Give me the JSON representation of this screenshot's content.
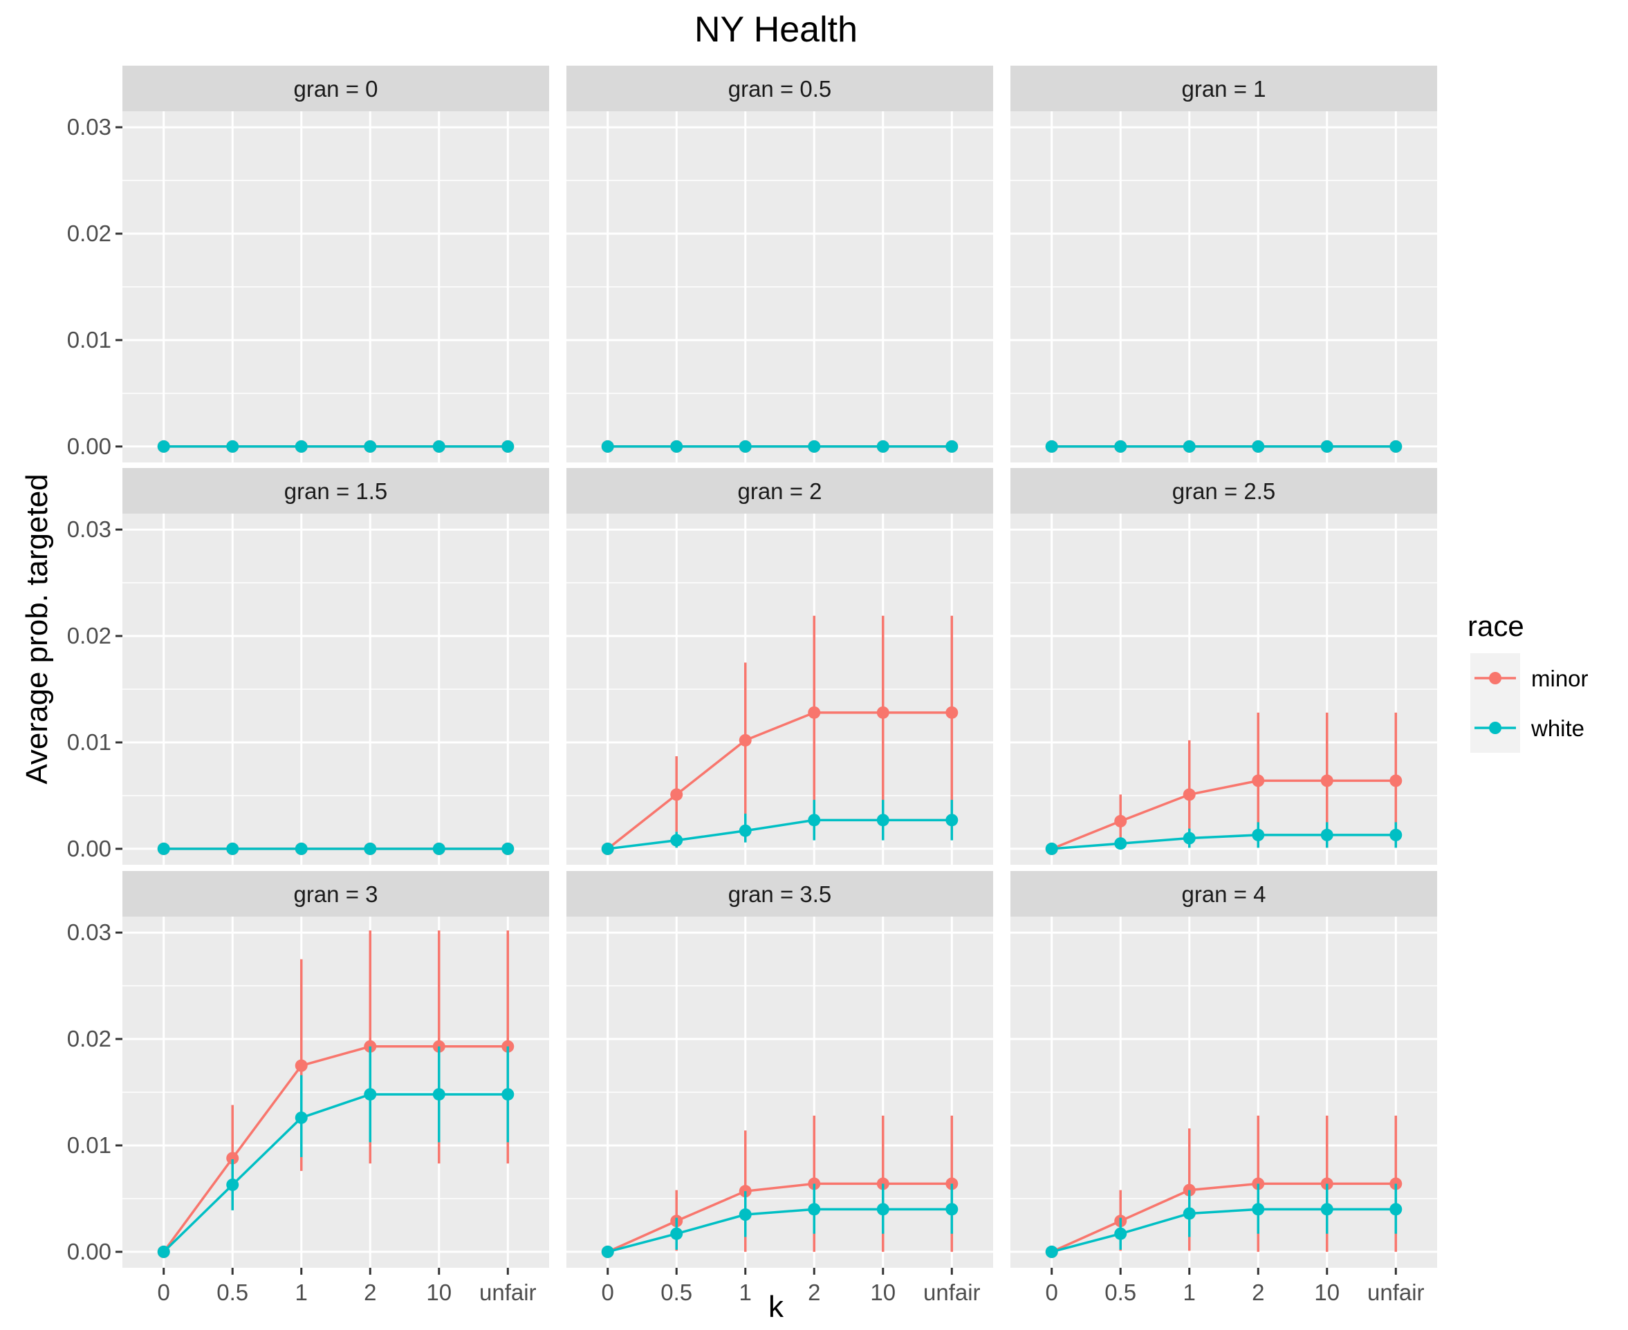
{
  "chart_data": {
    "type": "line",
    "title": "NY Health",
    "xlabel": "k",
    "ylabel": "Average prob. targeted",
    "x_categories": [
      "0",
      "0.5",
      "1",
      "2",
      "10",
      "unfair"
    ],
    "y_ticks": [
      0,
      0.01,
      0.02,
      0.03
    ],
    "y_tick_labels": [
      "0.00",
      "0.01",
      "0.02",
      "0.03"
    ],
    "ylim": [
      -0.0015,
      0.0315
    ],
    "grid": true,
    "facet_variable": "gran",
    "legend": {
      "title": "race",
      "placement": "right",
      "entries": [
        {
          "name": "minor",
          "color": "#F8766D"
        },
        {
          "name": "white",
          "color": "#00BFC4"
        }
      ]
    },
    "colors": {
      "minor": "#F8766D",
      "white": "#00BFC4",
      "panel": "#EBEBEB",
      "strip": "#D9D9D9",
      "grid": "#FFFFFF"
    },
    "panels": [
      {
        "label": "gran =  0",
        "series": [
          {
            "name": "minor",
            "values": [
              0,
              0,
              0,
              0,
              0,
              0
            ],
            "lower": [
              0,
              0,
              0,
              0,
              0,
              0
            ],
            "upper": [
              0,
              0,
              0,
              0,
              0,
              0
            ]
          },
          {
            "name": "white",
            "values": [
              0,
              0,
              0,
              0,
              0,
              0
            ],
            "lower": [
              0,
              0,
              0,
              0,
              0,
              0
            ],
            "upper": [
              0,
              0,
              0,
              0,
              0,
              0
            ]
          }
        ]
      },
      {
        "label": "gran =  0.5",
        "series": [
          {
            "name": "minor",
            "values": [
              0,
              0,
              0,
              0,
              0,
              0
            ],
            "lower": [
              0,
              0,
              0,
              0,
              0,
              0
            ],
            "upper": [
              0,
              0,
              0,
              0,
              0,
              0
            ]
          },
          {
            "name": "white",
            "values": [
              0,
              0,
              0,
              0,
              0,
              0
            ],
            "lower": [
              0,
              0,
              0,
              0,
              0,
              0
            ],
            "upper": [
              0,
              0,
              0,
              0,
              0,
              0
            ]
          }
        ]
      },
      {
        "label": "gran =  1",
        "series": [
          {
            "name": "minor",
            "values": [
              0,
              0,
              0,
              0,
              0,
              0
            ],
            "lower": [
              0,
              0,
              0,
              0,
              0,
              0
            ],
            "upper": [
              0,
              0,
              0,
              0,
              0,
              0
            ]
          },
          {
            "name": "white",
            "values": [
              0,
              0,
              0,
              0,
              0,
              0
            ],
            "lower": [
              0,
              0,
              0,
              0,
              0,
              0
            ],
            "upper": [
              0,
              0,
              0,
              0,
              0,
              0
            ]
          }
        ]
      },
      {
        "label": "gran =  1.5",
        "series": [
          {
            "name": "minor",
            "values": [
              0,
              0,
              0,
              0,
              0,
              0
            ],
            "lower": [
              0,
              0,
              0,
              0,
              0,
              0
            ],
            "upper": [
              0,
              0,
              0,
              0,
              0,
              0
            ]
          },
          {
            "name": "white",
            "values": [
              0,
              0,
              0,
              0,
              0,
              0
            ],
            "lower": [
              0,
              0,
              0,
              0,
              0,
              0
            ],
            "upper": [
              0,
              0,
              0,
              0,
              0,
              0
            ]
          }
        ]
      },
      {
        "label": "gran =  2",
        "series": [
          {
            "name": "minor",
            "values": [
              0,
              0.0051,
              0.0102,
              0.0128,
              0.0128,
              0.0128
            ],
            "lower": [
              0,
              0.0016,
              0.0028,
              0.0036,
              0.0036,
              0.0036
            ],
            "upper": [
              0,
              0.0087,
              0.0175,
              0.0219,
              0.0219,
              0.0219
            ]
          },
          {
            "name": "white",
            "values": [
              0,
              0.0008,
              0.0017,
              0.0027,
              0.0027,
              0.0027
            ],
            "lower": [
              0,
              0.0001,
              0.0006,
              0.0008,
              0.0008,
              0.0008
            ],
            "upper": [
              0,
              0.0016,
              0.0033,
              0.0046,
              0.0046,
              0.0046
            ]
          }
        ]
      },
      {
        "label": "gran =  2.5",
        "series": [
          {
            "name": "minor",
            "values": [
              0,
              0.0026,
              0.0051,
              0.0064,
              0.0064,
              0.0064
            ],
            "lower": [
              0,
              0.0003,
              0.0012,
              0.0012,
              0.0012,
              0.0012
            ],
            "upper": [
              0,
              0.0051,
              0.0102,
              0.0128,
              0.0128,
              0.0128
            ]
          },
          {
            "name": "white",
            "values": [
              0,
              0.0005,
              0.001,
              0.0013,
              0.0013,
              0.0013
            ],
            "lower": [
              0,
              0,
              0.0001,
              0.0001,
              0.0001,
              0.0001
            ],
            "upper": [
              0,
              0.0009,
              0.0019,
              0.0025,
              0.0025,
              0.0025
            ]
          }
        ]
      },
      {
        "label": "gran =  3",
        "series": [
          {
            "name": "minor",
            "values": [
              0,
              0.0088,
              0.0175,
              0.0193,
              0.0193,
              0.0193
            ],
            "lower": [
              0,
              0.004,
              0.0076,
              0.0083,
              0.0083,
              0.0083
            ],
            "upper": [
              0,
              0.0138,
              0.0275,
              0.0302,
              0.0302,
              0.0302
            ]
          },
          {
            "name": "white",
            "values": [
              0,
              0.0063,
              0.0126,
              0.0148,
              0.0148,
              0.0148
            ],
            "lower": [
              0,
              0.0039,
              0.0089,
              0.0103,
              0.0103,
              0.0103
            ],
            "upper": [
              0,
              0.0087,
              0.0166,
              0.0193,
              0.0193,
              0.0193
            ]
          }
        ]
      },
      {
        "label": "gran =  3.5",
        "series": [
          {
            "name": "minor",
            "values": [
              0,
              0.0029,
              0.0057,
              0.0064,
              0.0064,
              0.0064
            ],
            "lower": [
              0,
              0.0001,
              0,
              0,
              0,
              0
            ],
            "upper": [
              0,
              0.0058,
              0.0114,
              0.0128,
              0.0128,
              0.0128
            ]
          },
          {
            "name": "white",
            "values": [
              0,
              0.0017,
              0.0035,
              0.004,
              0.004,
              0.004
            ],
            "lower": [
              0,
              0.0002,
              0.0014,
              0.0017,
              0.0017,
              0.0017
            ],
            "upper": [
              0,
              0.0032,
              0.0057,
              0.0064,
              0.0064,
              0.0064
            ]
          }
        ]
      },
      {
        "label": "gran =  4",
        "series": [
          {
            "name": "minor",
            "values": [
              0,
              0.0029,
              0.0058,
              0.0064,
              0.0064,
              0.0064
            ],
            "lower": [
              0,
              0.0001,
              0.0001,
              0,
              0,
              0
            ],
            "upper": [
              0,
              0.0058,
              0.0116,
              0.0128,
              0.0128,
              0.0128
            ]
          },
          {
            "name": "white",
            "values": [
              0,
              0.0017,
              0.0036,
              0.004,
              0.004,
              0.004
            ],
            "lower": [
              0,
              0.0002,
              0.0014,
              0.0017,
              0.0017,
              0.0017
            ],
            "upper": [
              0,
              0.0032,
              0.0058,
              0.0064,
              0.0064,
              0.0064
            ]
          }
        ]
      }
    ]
  }
}
